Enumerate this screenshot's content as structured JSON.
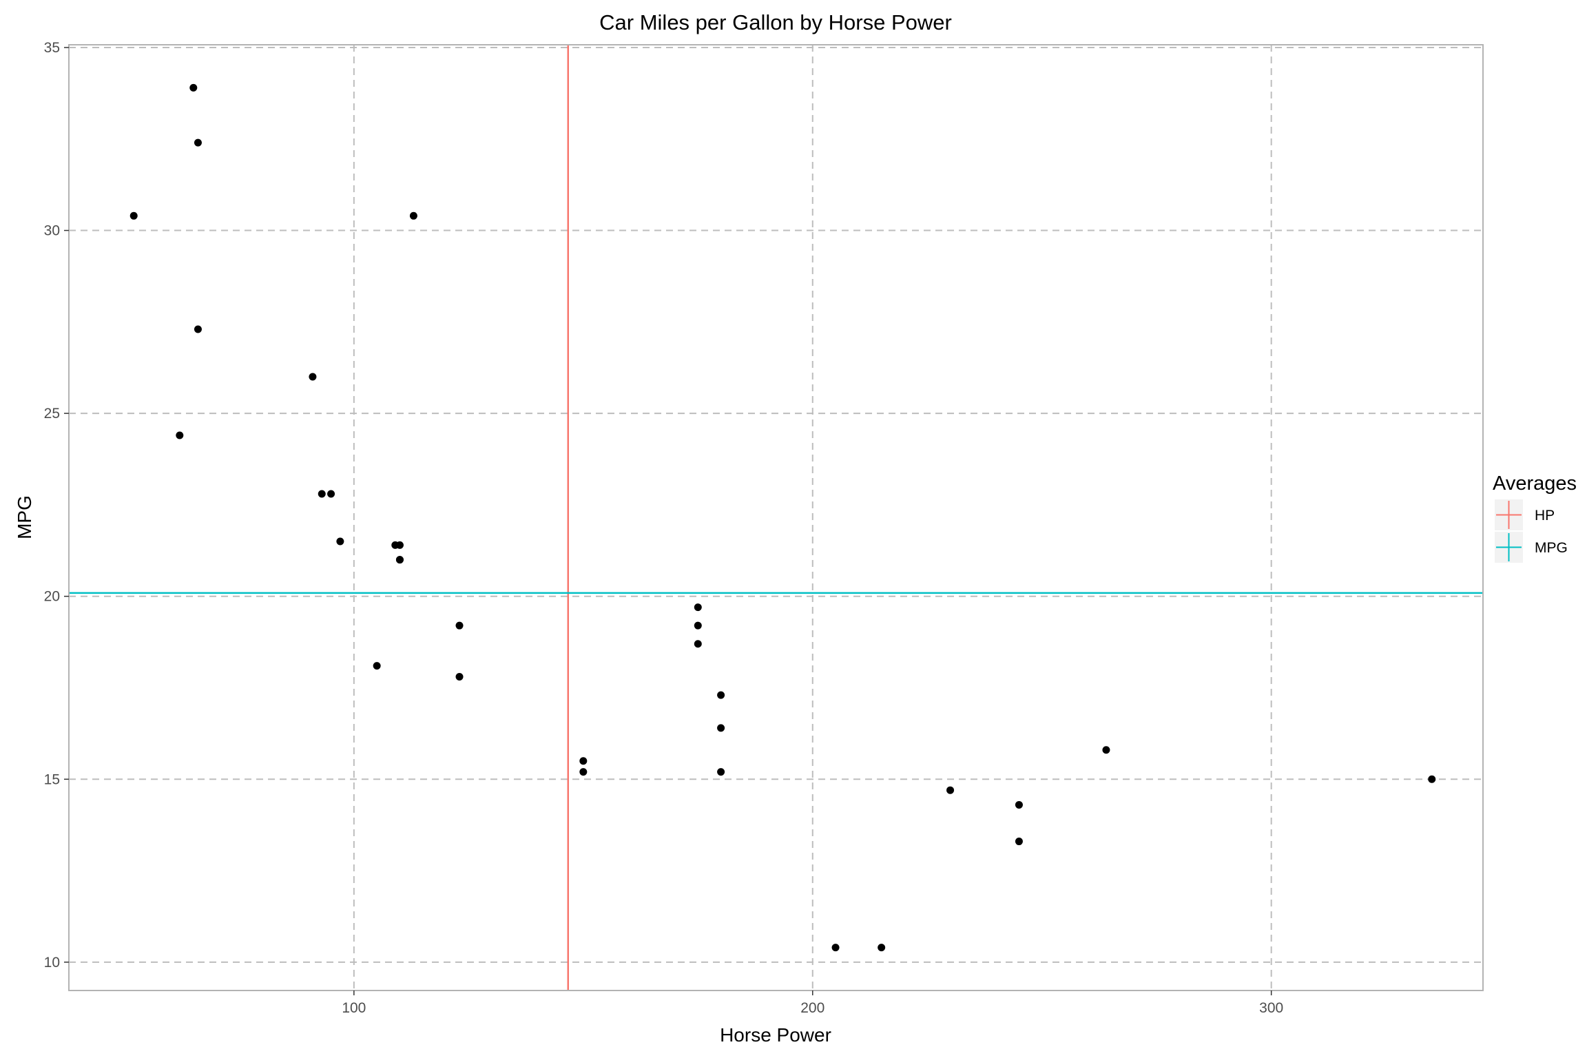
{
  "chart_data": {
    "type": "scatter",
    "title": "Car Miles per Gallon by Horse Power",
    "xlabel": "Horse Power",
    "ylabel": "MPG",
    "xlim": [
      37.85,
      346.15
    ],
    "ylim": [
      9.225,
      35.075
    ],
    "x_ticks": [
      100,
      200,
      300
    ],
    "y_ticks": [
      10,
      15,
      20,
      25,
      30,
      35
    ],
    "grid": true,
    "points": [
      {
        "x": 110,
        "y": 21.0
      },
      {
        "x": 110,
        "y": 21.0
      },
      {
        "x": 93,
        "y": 22.8
      },
      {
        "x": 110,
        "y": 21.4
      },
      {
        "x": 175,
        "y": 18.7
      },
      {
        "x": 105,
        "y": 18.1
      },
      {
        "x": 245,
        "y": 14.3
      },
      {
        "x": 62,
        "y": 24.4
      },
      {
        "x": 95,
        "y": 22.8
      },
      {
        "x": 123,
        "y": 19.2
      },
      {
        "x": 123,
        "y": 17.8
      },
      {
        "x": 180,
        "y": 16.4
      },
      {
        "x": 180,
        "y": 17.3
      },
      {
        "x": 180,
        "y": 15.2
      },
      {
        "x": 205,
        "y": 10.4
      },
      {
        "x": 215,
        "y": 10.4
      },
      {
        "x": 230,
        "y": 14.7
      },
      {
        "x": 66,
        "y": 32.4
      },
      {
        "x": 52,
        "y": 30.4
      },
      {
        "x": 65,
        "y": 33.9
      },
      {
        "x": 97,
        "y": 21.5
      },
      {
        "x": 150,
        "y": 15.5
      },
      {
        "x": 150,
        "y": 15.2
      },
      {
        "x": 245,
        "y": 13.3
      },
      {
        "x": 175,
        "y": 19.2
      },
      {
        "x": 66,
        "y": 27.3
      },
      {
        "x": 91,
        "y": 26.0
      },
      {
        "x": 113,
        "y": 30.4
      },
      {
        "x": 264,
        "y": 15.8
      },
      {
        "x": 175,
        "y": 19.7
      },
      {
        "x": 335,
        "y": 15.0
      },
      {
        "x": 109,
        "y": 21.4
      }
    ],
    "reference_lines": [
      {
        "name": "HP",
        "orientation": "vertical",
        "value": 146.6875,
        "color": "#F8766D"
      },
      {
        "name": "MPG",
        "orientation": "horizontal",
        "value": 20.09062,
        "color": "#00BFC4"
      }
    ],
    "legend": {
      "title": "Averages",
      "position": "right",
      "entries": [
        {
          "label": "HP",
          "color": "#F8766D"
        },
        {
          "label": "MPG",
          "color": "#00BFC4"
        }
      ]
    }
  }
}
